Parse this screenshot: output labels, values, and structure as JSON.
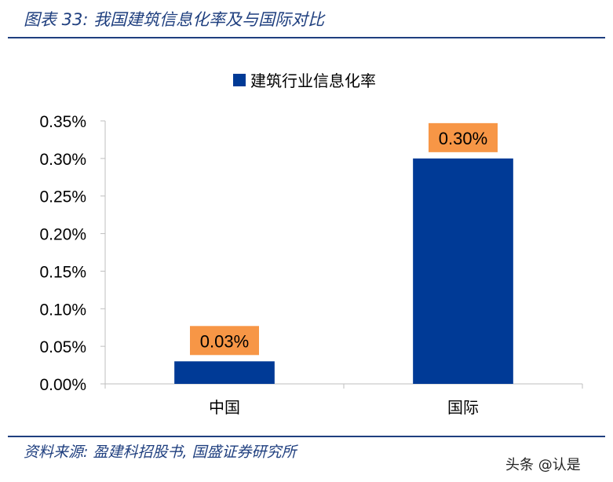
{
  "figure_title": "图表 33:  我国建筑信息化率及与国际对比",
  "source_text": "资料来源:  盈建科招股书,  国盛证券研究所",
  "watermark": "头条 @认是",
  "colors": {
    "bar": "#003a96",
    "label_bg": "#f79646",
    "rule": "#1f3f7f",
    "axis": "#bfbfbf"
  },
  "chart_data": {
    "type": "bar",
    "categories": [
      "中国",
      "国际"
    ],
    "series": [
      {
        "name": "建筑行业信息化率",
        "values": [
          0.0003,
          0.003
        ]
      }
    ],
    "data_labels": [
      "0.03%",
      "0.30%"
    ],
    "yticks": [
      "0.00%",
      "0.05%",
      "0.10%",
      "0.15%",
      "0.20%",
      "0.25%",
      "0.30%",
      "0.35%"
    ],
    "ylim": [
      0,
      0.0035
    ],
    "legend_position": "top-center",
    "grid": false
  }
}
